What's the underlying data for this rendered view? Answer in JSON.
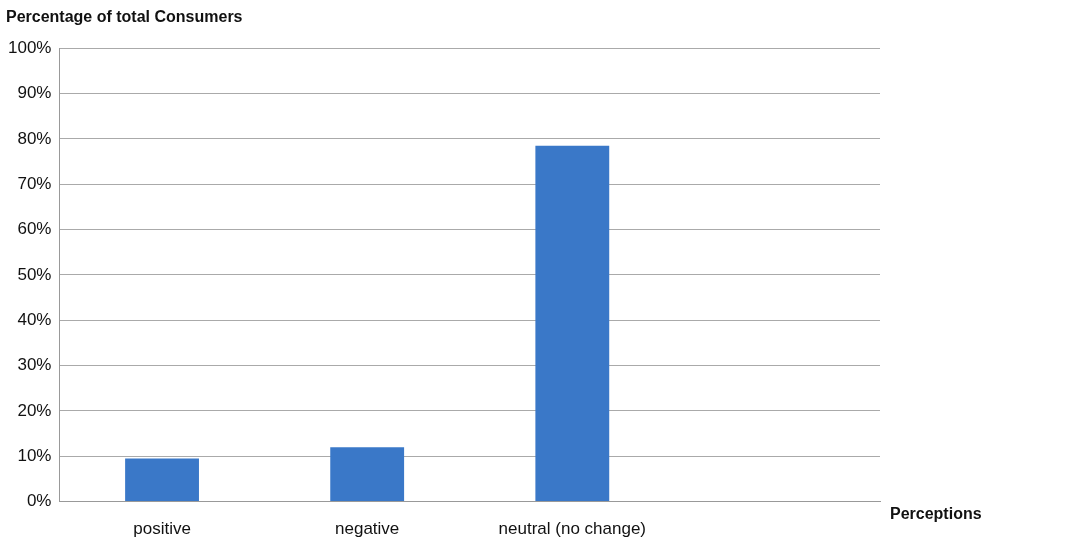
{
  "chart_data": {
    "type": "bar",
    "ylabel": "Percentage of total Consumers",
    "xlabel": "Perceptions",
    "categories": [
      "positive",
      "negative",
      "neutral (no change)",
      null
    ],
    "values": [
      9.5,
      12,
      78.5,
      null
    ],
    "color": "#3a78c8",
    "ylim": [
      0,
      100
    ],
    "yticks": [
      {
        "value": 0,
        "label": "0%"
      },
      {
        "value": 10,
        "label": "10%"
      },
      {
        "value": 20,
        "label": "20%"
      },
      {
        "value": 30,
        "label": "30%"
      },
      {
        "value": 40,
        "label": "40%"
      },
      {
        "value": 50,
        "label": "50%"
      },
      {
        "value": 60,
        "label": "60%"
      },
      {
        "value": 70,
        "label": "70%"
      },
      {
        "value": 80,
        "label": "80%"
      },
      {
        "value": 90,
        "label": "90%"
      },
      {
        "value": 100,
        "label": "100%"
      }
    ],
    "grid": "y",
    "legend": false
  }
}
